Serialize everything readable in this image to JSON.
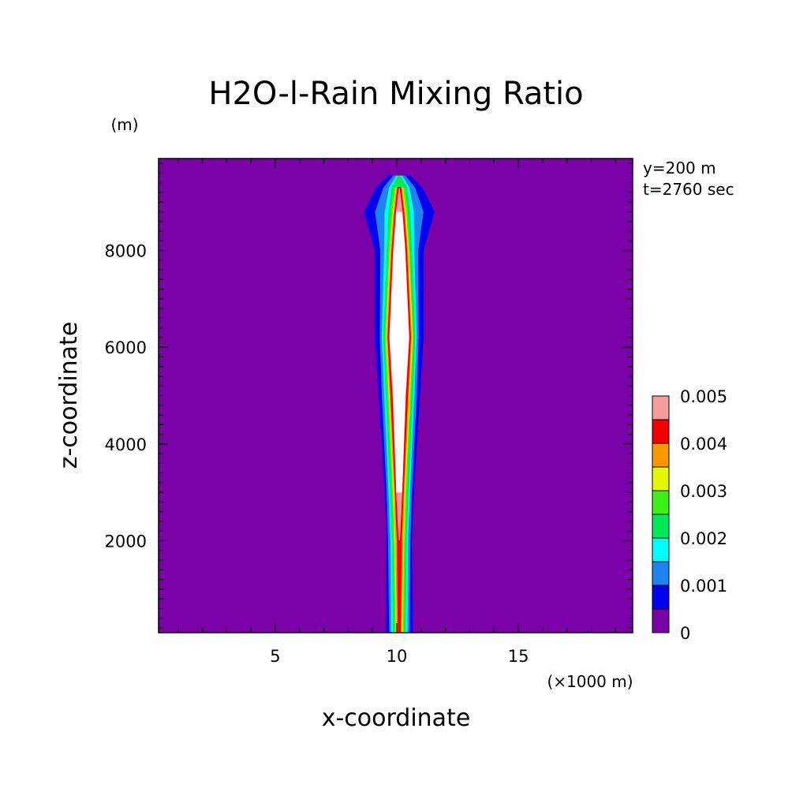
{
  "chart_data": {
    "type": "heatmap",
    "title": "H2O-l-Rain Mixing Ratio",
    "xlabel": "x-coordinate",
    "ylabel": "z-coordinate",
    "x_unit": "(×1000 m)",
    "y_unit": "(m)",
    "annotations": [
      "y=200 m",
      "t=2760 sec"
    ],
    "xlim": [
      0.2,
      19.7
    ],
    "ylim": [
      100,
      9900
    ],
    "x_ticks": [
      5,
      10,
      15
    ],
    "x_tick_labels": [
      "5",
      "10",
      "15"
    ],
    "y_ticks": [
      2000,
      4000,
      6000,
      8000
    ],
    "y_tick_labels": [
      "2000",
      "4000",
      "6000",
      "8000"
    ],
    "colorbar": {
      "levels": [
        0,
        0.0005,
        0.001,
        0.0015,
        0.002,
        0.0025,
        0.003,
        0.0035,
        0.004,
        0.0045,
        0.005
      ],
      "tick_labels": [
        "0",
        "0.001",
        "0.002",
        "0.003",
        "0.004",
        "0.005"
      ],
      "colors": [
        "#7a00a8",
        "#0000ee",
        "#1f82f2",
        "#00fdfd",
        "#00ea57",
        "#3ff017",
        "#e5f700",
        "#fd9700",
        "#f20000",
        "#f79c9c",
        "#ffffff"
      ]
    },
    "plume": {
      "center_x": 10.1,
      "half_widths_km": [
        {
          "z": 100,
          "w": [
            0.55,
            0.42,
            0.34,
            0.26,
            0.2,
            0.15,
            0.11,
            0.06,
            0.0,
            0.0
          ]
        },
        {
          "z": 2000,
          "w": [
            0.52,
            0.46,
            0.36,
            0.3,
            0.26,
            0.2,
            0.16,
            0.1,
            0.05,
            0.0
          ]
        },
        {
          "z": 3000,
          "w": [
            0.6,
            0.52,
            0.44,
            0.38,
            0.32,
            0.26,
            0.22,
            0.18,
            0.15,
            0.12
          ]
        },
        {
          "z": 5000,
          "w": [
            0.85,
            0.72,
            0.62,
            0.56,
            0.5,
            0.44,
            0.4,
            0.36,
            0.3,
            0.25
          ]
        },
        {
          "z": 6200,
          "w": [
            1.0,
            0.8,
            0.72,
            0.66,
            0.6,
            0.56,
            0.52,
            0.48,
            0.44,
            0.4
          ]
        },
        {
          "z": 8000,
          "w": [
            1.0,
            0.78,
            0.62,
            0.52,
            0.45,
            0.4,
            0.36,
            0.32,
            0.28,
            0.24
          ]
        },
        {
          "z": 8800,
          "w": [
            1.45,
            1.0,
            0.6,
            0.45,
            0.36,
            0.28,
            0.24,
            0.2,
            0.16,
            0.12
          ]
        },
        {
          "z": 9300,
          "w": [
            0.95,
            0.65,
            0.42,
            0.32,
            0.24,
            0.16,
            0.12,
            0.08,
            0.04,
            0.0
          ]
        },
        {
          "z": 9550,
          "w": [
            0.45,
            0.25,
            0.12,
            0.05,
            0.0,
            0.0,
            0.0,
            0.0,
            0.0,
            0.0
          ]
        }
      ]
    }
  }
}
